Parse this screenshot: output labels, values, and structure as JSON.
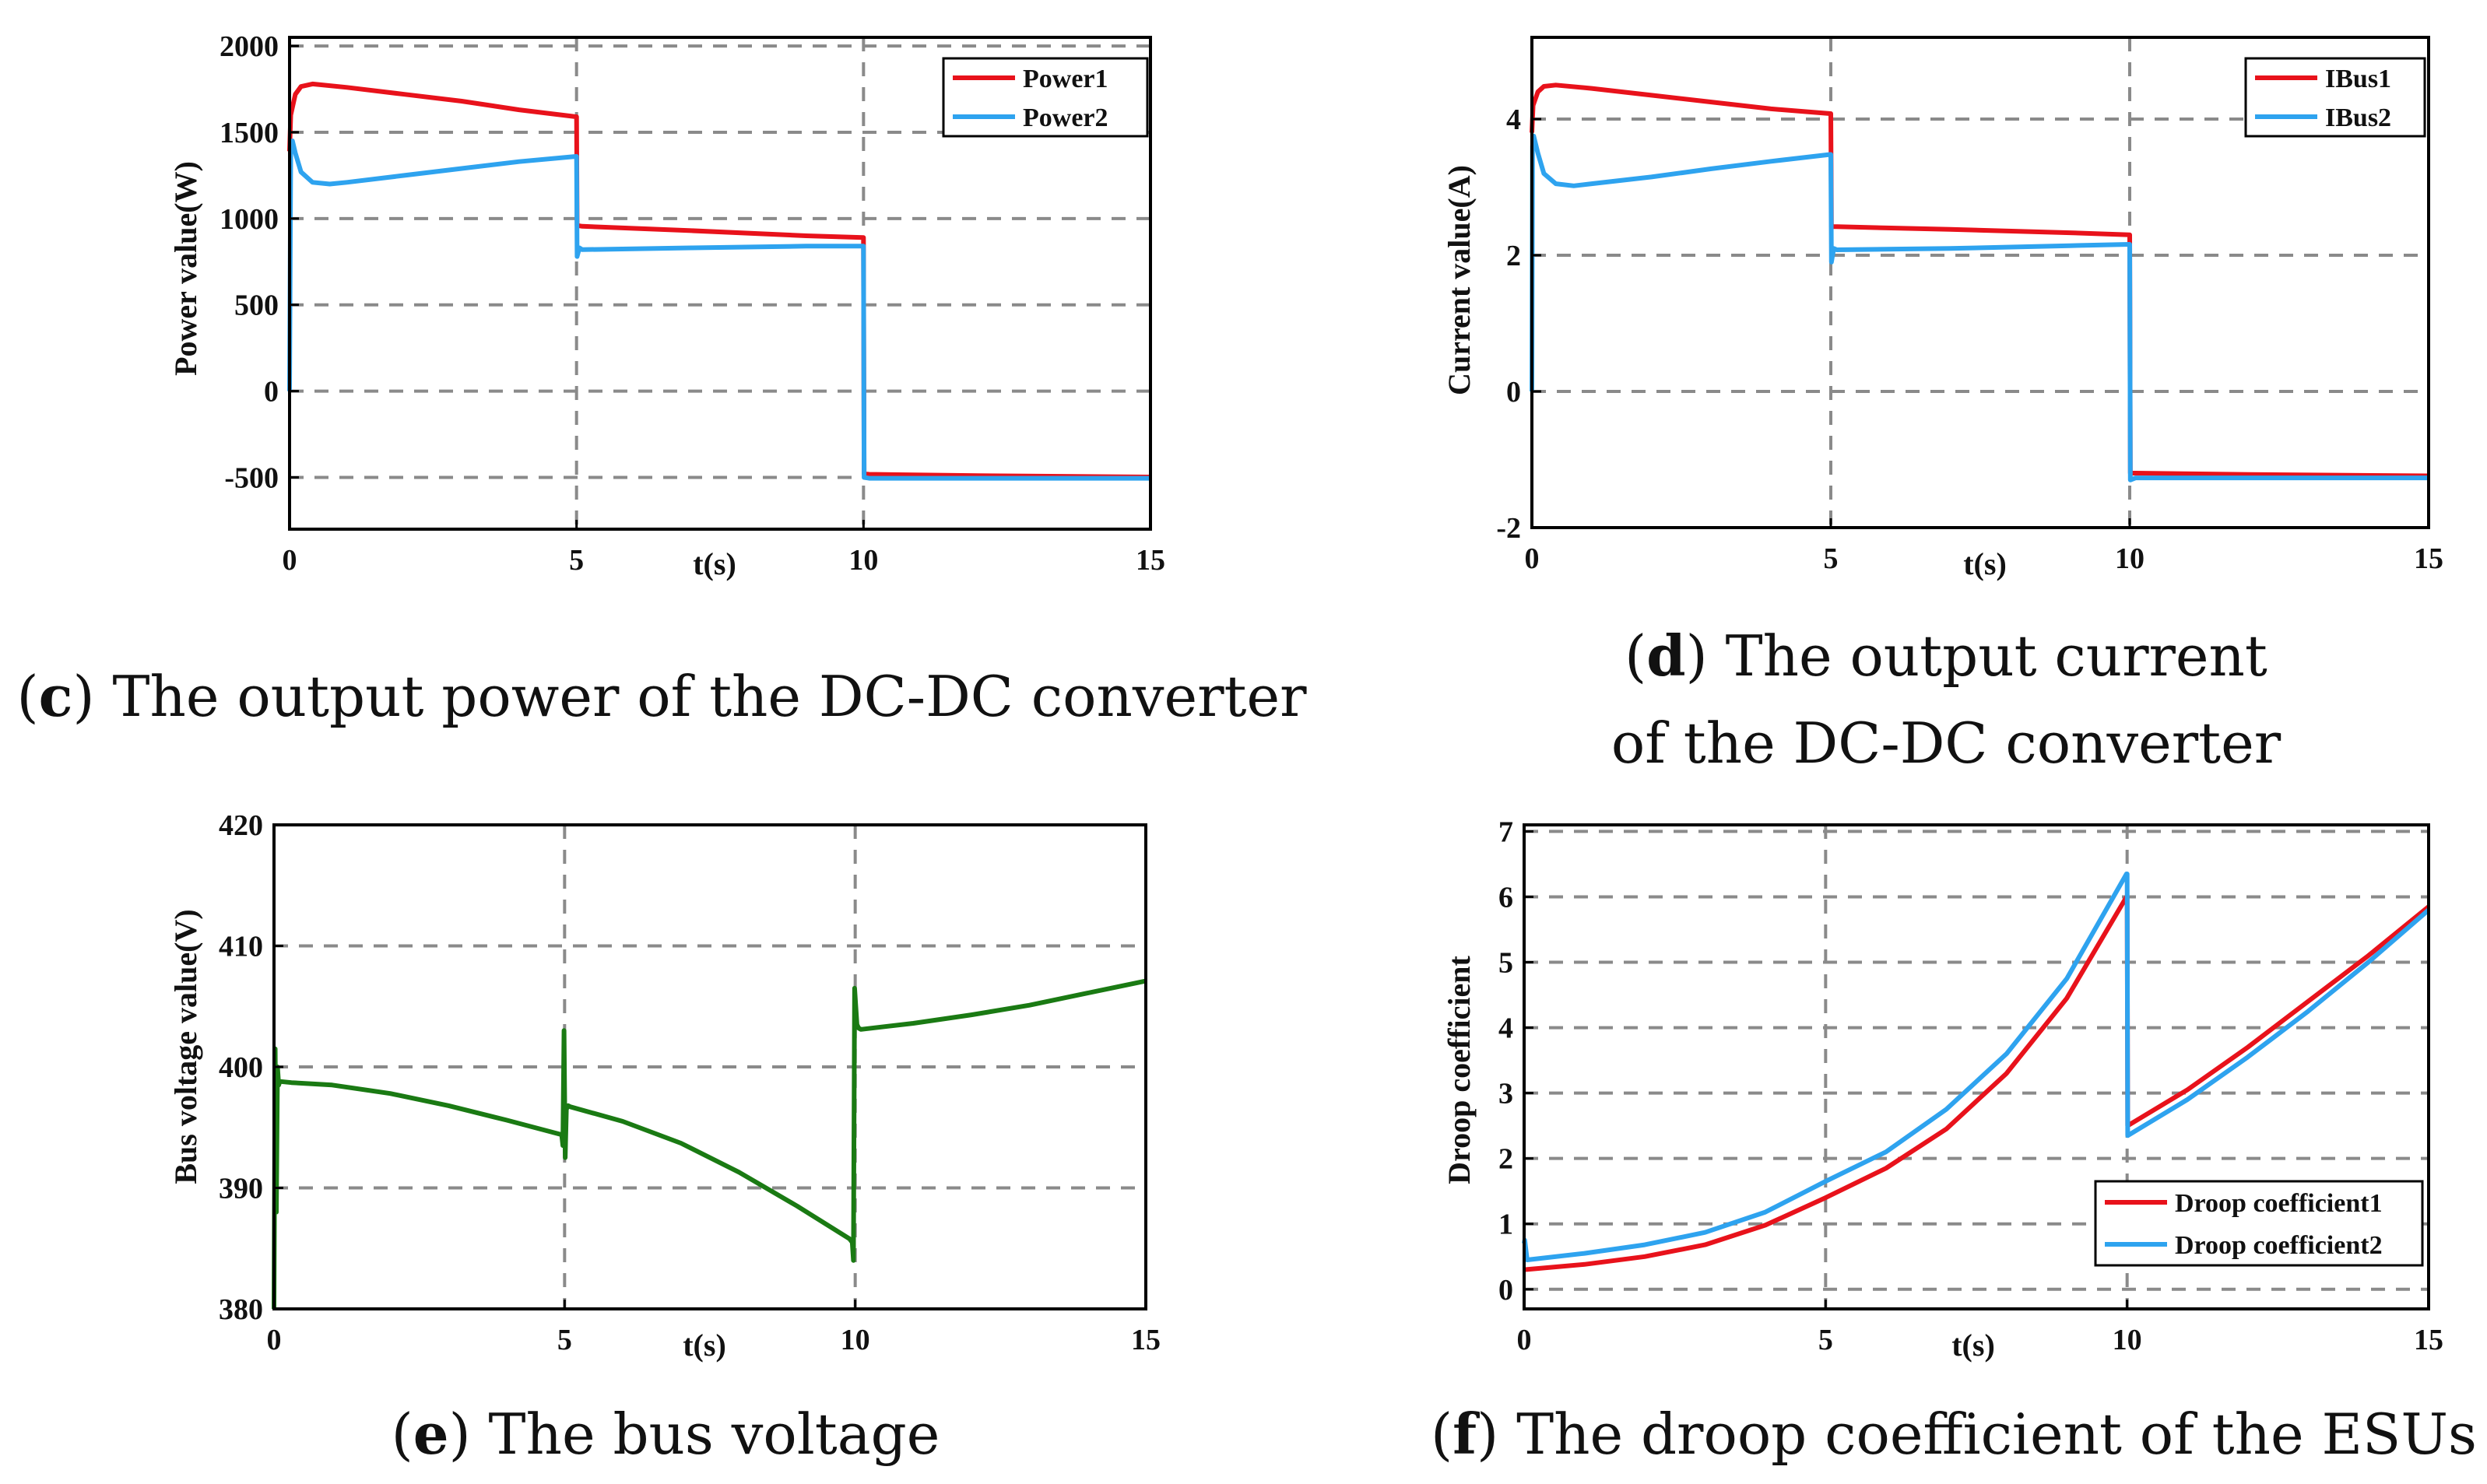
{
  "colors": {
    "series_red": "#e8121b",
    "series_blue": "#2ea3ef",
    "series_green": "#1a7a13",
    "grid": "#8a8a8a",
    "axis": "#000000"
  },
  "chart_data": [
    {
      "id": "c",
      "type": "line",
      "caption_letter": "c",
      "caption_lines": [
        "The output power of the DC-DC converter"
      ],
      "xlabel": "t(s)",
      "ylabel": "Power value(W)",
      "xlim": [
        0,
        15
      ],
      "ylim": [
        -800,
        2050
      ],
      "xticks": [
        0,
        5,
        10,
        15
      ],
      "xtick_labels": [
        "0",
        "5",
        "10",
        "15"
      ],
      "yticks": [
        -500,
        0,
        500,
        1000,
        1500,
        2000
      ],
      "ytick_labels": [
        "-500",
        "0",
        "500",
        "1000",
        "1500",
        "2000"
      ],
      "grid": true,
      "legend_position": "top-right",
      "series": [
        {
          "name": "Power1",
          "color": "#e8121b",
          "x": [
            0,
            0.02,
            0.1,
            0.2,
            0.4,
            1,
            2,
            3,
            4,
            4.99,
            5.0,
            5.01,
            5.1,
            7,
            9,
            9.99,
            10.0,
            10.01,
            10.1,
            12,
            15
          ],
          "y": [
            1390,
            1600,
            1720,
            1765,
            1780,
            1760,
            1720,
            1680,
            1630,
            1590,
            1590,
            960,
            955,
            930,
            900,
            890,
            890,
            -480,
            -482,
            -490,
            -498
          ]
        },
        {
          "name": "Power2",
          "color": "#2ea3ef",
          "x": [
            0,
            0.02,
            0.05,
            0.1,
            0.2,
            0.4,
            0.7,
            1,
            2,
            3,
            4,
            4.99,
            5.0,
            5.01,
            5.05,
            5.1,
            7,
            9,
            9.99,
            10.0,
            10.01,
            10.1,
            12,
            15
          ],
          "y": [
            0,
            1400,
            1450,
            1380,
            1270,
            1210,
            1200,
            1210,
            1250,
            1290,
            1330,
            1360,
            1360,
            780,
            830,
            820,
            830,
            840,
            840,
            840,
            -500,
            -505,
            -505,
            -505
          ]
        }
      ]
    },
    {
      "id": "d",
      "type": "line",
      "caption_letter": "d",
      "caption_lines": [
        "The output current",
        "of the DC-DC converter"
      ],
      "xlabel": "t(s)",
      "ylabel": "Current value(A)",
      "xlim": [
        0,
        15
      ],
      "ylim": [
        -2,
        5.2
      ],
      "xticks": [
        0,
        5,
        10,
        15
      ],
      "xtick_labels": [
        "0",
        "5",
        "10",
        "15"
      ],
      "yticks": [
        -2,
        0,
        2,
        4
      ],
      "ytick_labels": [
        "-2",
        "0",
        "2",
        "4"
      ],
      "grid": true,
      "legend_position": "top-right",
      "series": [
        {
          "name": "IBus1",
          "color": "#e8121b",
          "x": [
            0,
            0.02,
            0.1,
            0.2,
            0.4,
            1,
            2,
            3,
            4,
            4.99,
            5.0,
            5.01,
            5.1,
            7,
            9,
            9.99,
            10.0,
            10.01,
            10.1,
            12,
            15
          ],
          "y": [
            3.8,
            4.2,
            4.4,
            4.48,
            4.5,
            4.45,
            4.35,
            4.25,
            4.15,
            4.08,
            4.08,
            2.42,
            2.42,
            2.38,
            2.33,
            2.3,
            2.3,
            -1.2,
            -1.2,
            -1.22,
            -1.24
          ]
        },
        {
          "name": "IBus2",
          "color": "#2ea3ef",
          "x": [
            0,
            0.01,
            0.03,
            0.1,
            0.2,
            0.4,
            0.7,
            1,
            2,
            3,
            4,
            4.99,
            5.0,
            5.01,
            5.05,
            5.1,
            7,
            9,
            9.99,
            10.0,
            10.01,
            10.1,
            12,
            15
          ],
          "y": [
            0,
            3.6,
            3.75,
            3.5,
            3.2,
            3.05,
            3.02,
            3.05,
            3.15,
            3.27,
            3.38,
            3.48,
            3.48,
            1.9,
            2.1,
            2.08,
            2.1,
            2.14,
            2.16,
            2.16,
            -1.3,
            -1.27,
            -1.27,
            -1.27
          ]
        }
      ]
    },
    {
      "id": "e",
      "type": "line",
      "caption_letter": "e",
      "caption_lines": [
        "The bus voltage"
      ],
      "xlabel": "t(s)",
      "ylabel": "Bus voltage value(V)",
      "xlim": [
        0,
        15
      ],
      "ylim": [
        380,
        420
      ],
      "xticks": [
        0,
        5,
        10,
        15
      ],
      "xtick_labels": [
        "0",
        "5",
        "10",
        "15"
      ],
      "yticks": [
        380,
        390,
        400,
        410,
        420
      ],
      "ytick_labels": [
        "380",
        "390",
        "400",
        "410",
        "420"
      ],
      "grid": true,
      "legend_position": "none",
      "series": [
        {
          "name": "Bus voltage",
          "color": "#1a7a13",
          "x": [
            0,
            0.02,
            0.04,
            0.06,
            0.08,
            0.1,
            0.3,
            1,
            2,
            3,
            4,
            4.95,
            4.97,
            4.99,
            5.01,
            5.03,
            5.06,
            5.1,
            6,
            7,
            8,
            9,
            9.9,
            9.95,
            9.97,
            9.99,
            10.01,
            10.03,
            10.06,
            10.1,
            11,
            12,
            13,
            14,
            15
          ],
          "y": [
            380,
            401.5,
            388,
            400,
            398.5,
            398.8,
            398.7,
            398.5,
            397.8,
            396.8,
            395.6,
            394.4,
            393.5,
            403,
            392.5,
            396.5,
            396.8,
            396.7,
            395.5,
            393.7,
            391.3,
            388.5,
            385.8,
            385.5,
            384,
            406.5,
            405,
            403.5,
            403.2,
            403.1,
            403.6,
            404.3,
            405.1,
            406.1,
            407.1
          ]
        }
      ]
    },
    {
      "id": "f",
      "type": "line",
      "caption_letter": "f",
      "caption_lines": [
        "The droop coefficient of the ESUs"
      ],
      "xlabel": "t(s)",
      "ylabel": "Droop coefficient",
      "xlim": [
        0,
        15
      ],
      "ylim": [
        -0.3,
        7.1
      ],
      "xticks": [
        0,
        5,
        10,
        15
      ],
      "xtick_labels": [
        "0",
        "5",
        "10",
        "15"
      ],
      "yticks": [
        0,
        1,
        2,
        3,
        4,
        5,
        6,
        7
      ],
      "ytick_labels": [
        "0",
        "1",
        "2",
        "3",
        "4",
        "5",
        "6",
        "7"
      ],
      "grid": true,
      "legend_position": "bottom-right",
      "series": [
        {
          "name": "Droop coefficient1",
          "color": "#e8121b",
          "x": [
            0,
            1,
            2,
            3,
            4,
            5,
            6,
            7,
            8,
            9,
            9.99,
            10.0,
            10.01,
            11,
            12,
            13,
            14,
            15
          ],
          "y": [
            0.3,
            0.38,
            0.5,
            0.68,
            0.98,
            1.4,
            1.85,
            2.45,
            3.3,
            4.45,
            6.0,
            6.0,
            2.5,
            3.05,
            3.7,
            4.4,
            5.1,
            5.85
          ]
        },
        {
          "name": "Droop coefficient2",
          "color": "#2ea3ef",
          "x": [
            0,
            0.01,
            0.05,
            1,
            2,
            3,
            4,
            5,
            6,
            7,
            8,
            9,
            9.99,
            10.0,
            10.01,
            11,
            12,
            13,
            14,
            15
          ],
          "y": [
            0.7,
            0.75,
            0.45,
            0.55,
            0.68,
            0.87,
            1.18,
            1.65,
            2.1,
            2.75,
            3.6,
            4.75,
            6.35,
            6.35,
            2.35,
            2.9,
            3.55,
            4.25,
            5.0,
            5.8
          ]
        }
      ]
    }
  ]
}
